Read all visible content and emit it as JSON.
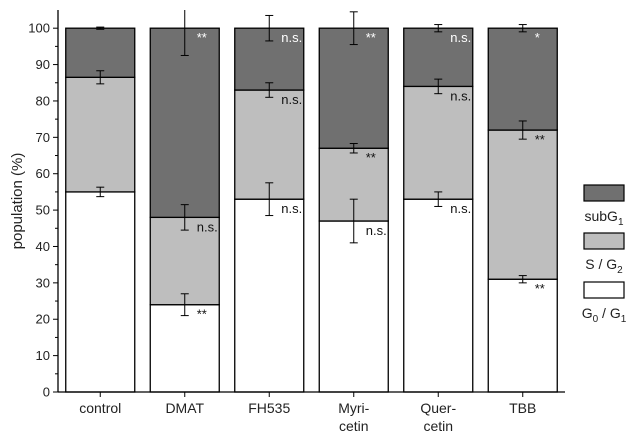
{
  "chart_data": {
    "type": "bar",
    "stacked": true,
    "title": "",
    "xlabel": "",
    "ylabel": "population (%)",
    "ylim": [
      0,
      105
    ],
    "yticks": [
      0,
      10,
      20,
      30,
      40,
      50,
      60,
      70,
      80,
      90,
      100
    ],
    "categories": [
      {
        "lines": [
          "control"
        ]
      },
      {
        "lines": [
          "DMAT"
        ]
      },
      {
        "lines": [
          "FH535"
        ]
      },
      {
        "lines": [
          "Myri-",
          "cetin"
        ]
      },
      {
        "lines": [
          "Quer-",
          "cetin"
        ]
      },
      {
        "lines": [
          "TBB"
        ]
      }
    ],
    "series": [
      {
        "key": "g0g1",
        "legend_main": "G",
        "legend_sub1": "0",
        "legend_mid": " / G",
        "legend_sub2": "1",
        "color": "#ffffff",
        "values": [
          55,
          24,
          53,
          47,
          53,
          31
        ],
        "err": [
          1.3,
          3.0,
          4.5,
          6.0,
          2.0,
          1.0
        ],
        "annotations": [
          "",
          "**",
          "n.s.",
          "n.s.",
          "n.s.",
          "**"
        ]
      },
      {
        "key": "sg2",
        "legend_main": "S / G",
        "legend_sub1": "",
        "legend_mid": "",
        "legend_sub2": "2",
        "color": "#bebebe",
        "values": [
          31.5,
          24,
          30,
          20,
          31,
          41
        ],
        "err": [
          1.8,
          3.5,
          2.0,
          1.3,
          2.0,
          2.5
        ],
        "annotations": [
          "",
          "n.s.",
          "n.s.",
          "**",
          "n.s.",
          "**"
        ]
      },
      {
        "key": "subg1",
        "legend_main": "subG",
        "legend_sub1": "",
        "legend_mid": "",
        "legend_sub2": "1",
        "color": "#707070",
        "values": [
          13.5,
          52,
          17,
          33,
          16,
          28
        ],
        "err": [
          0.3,
          7.5,
          3.5,
          4.5,
          1.0,
          1.0
        ],
        "annotations": [
          "",
          "**",
          "n.s.",
          "**",
          "n.s.",
          "*"
        ]
      }
    ]
  }
}
